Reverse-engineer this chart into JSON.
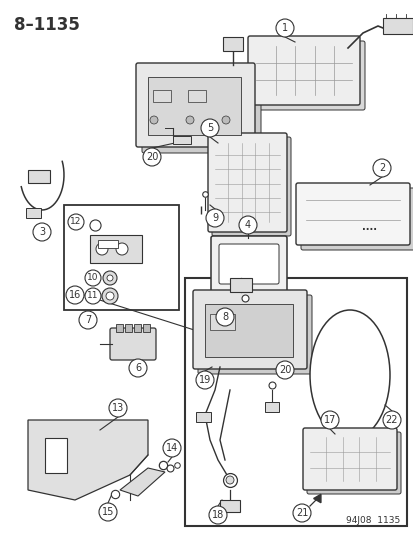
{
  "title": "8–1135",
  "footer": "94J08  1135",
  "bg_color": "#ffffff",
  "fig_width": 4.14,
  "fig_height": 5.33,
  "dpi": 100,
  "outline_color": "#333333",
  "light_gray": "#c8c8c8",
  "mid_gray": "#999999",
  "dark_gray": "#555555",
  "fill_light": "#eeeeee",
  "fill_mid": "#dddddd"
}
